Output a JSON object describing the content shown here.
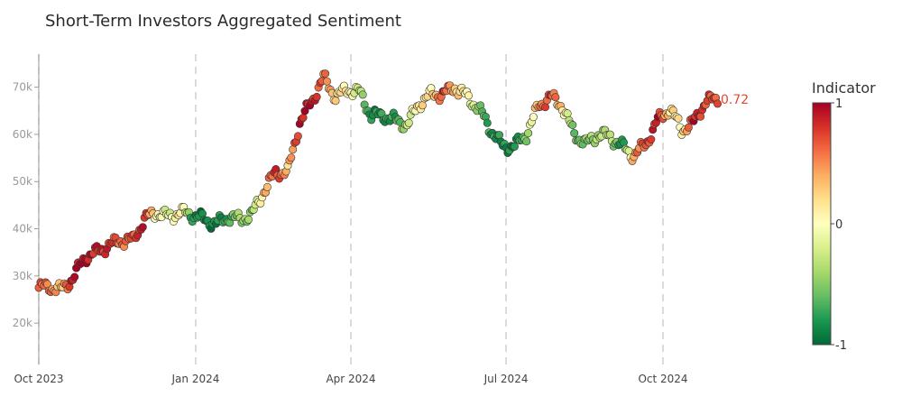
{
  "chart_data": {
    "type": "scatter",
    "title": "Short-Term Investors Aggregated Sentiment",
    "xlabel": "",
    "ylabel": "",
    "x_start": "2023-10-01",
    "x_end": "2024-11-10",
    "x_ticks": [
      {
        "date": "2023-10-01",
        "label": "Oct 2023"
      },
      {
        "date": "2024-01-01",
        "label": "Jan 2024"
      },
      {
        "date": "2024-04-01",
        "label": "Apr 2024"
      },
      {
        "date": "2024-07-01",
        "label": "Jul 2024"
      },
      {
        "date": "2024-10-01",
        "label": "Oct 2024"
      }
    ],
    "ylim": [
      12000,
      77000
    ],
    "y_ticks": [
      {
        "value": 20000,
        "label": "20k"
      },
      {
        "value": 30000,
        "label": "30k"
      },
      {
        "value": 40000,
        "label": "40k"
      },
      {
        "value": 50000,
        "label": "50k"
      },
      {
        "value": 60000,
        "label": "60k"
      },
      {
        "value": 70000,
        "label": "70k"
      }
    ],
    "grid": "vertical dashed at x ticks",
    "colorbar": {
      "title": "Indicator",
      "min": -1,
      "max": 1,
      "tick_labels": [
        "1",
        "0",
        "-1"
      ],
      "colors": [
        "#006837",
        "#1a9850",
        "#66bd63",
        "#a6d96a",
        "#d9ef8b",
        "#ffffbf",
        "#fee08b",
        "#fdae61",
        "#f46d43",
        "#d73027",
        "#a50026"
      ]
    },
    "last_value_label": "0.72",
    "series_x": [
      "2023-10-01",
      "2023-10-07",
      "2023-10-14",
      "2023-10-21",
      "2023-10-28",
      "2023-11-04",
      "2023-11-11",
      "2023-11-18",
      "2023-11-25",
      "2023-12-02",
      "2023-12-09",
      "2023-12-16",
      "2023-12-23",
      "2023-12-30",
      "2024-01-06",
      "2024-01-13",
      "2024-01-20",
      "2024-01-27",
      "2024-02-03",
      "2024-02-10",
      "2024-02-17",
      "2024-02-24",
      "2024-03-02",
      "2024-03-09",
      "2024-03-16",
      "2024-03-23",
      "2024-03-30",
      "2024-04-06",
      "2024-04-13",
      "2024-04-20",
      "2024-04-27",
      "2024-05-04",
      "2024-05-11",
      "2024-05-18",
      "2024-05-25",
      "2024-06-01",
      "2024-06-08",
      "2024-06-15",
      "2024-06-22",
      "2024-06-29",
      "2024-07-06",
      "2024-07-13",
      "2024-07-20",
      "2024-07-27",
      "2024-08-03",
      "2024-08-10",
      "2024-08-17",
      "2024-08-24",
      "2024-08-31",
      "2024-09-07",
      "2024-09-14",
      "2024-09-21",
      "2024-09-28",
      "2024-10-05",
      "2024-10-12",
      "2024-10-19",
      "2024-10-26",
      "2024-11-02"
    ],
    "series_price": [
      27500,
      27800,
      27000,
      29500,
      34000,
      35000,
      36500,
      37500,
      37500,
      42000,
      43500,
      42500,
      43500,
      43000,
      42000,
      41000,
      42500,
      42000,
      43000,
      48000,
      52000,
      52000,
      62500,
      67000,
      72000,
      68000,
      69500,
      69000,
      64000,
      64000,
      63000,
      62000,
      66500,
      68500,
      68500,
      70000,
      68000,
      65500,
      61000,
      57500,
      57500,
      60000,
      66000,
      68000,
      66000,
      60000,
      58000,
      60000,
      59500,
      57500,
      55500,
      58000,
      63000,
      65500,
      61000,
      62500,
      67000,
      67500
    ],
    "series_indicator": [
      0.65,
      0.6,
      0.3,
      0.95,
      0.95,
      0.85,
      0.8,
      0.6,
      0.7,
      0.9,
      0.0,
      -0.2,
      0.2,
      -0.8,
      -0.9,
      -0.85,
      -0.7,
      -0.4,
      -0.5,
      0.3,
      0.85,
      0.3,
      0.9,
      0.9,
      0.6,
      0.2,
      0.1,
      -0.3,
      -0.85,
      -0.8,
      -0.75,
      -0.3,
      0.2,
      0.1,
      0.8,
      0.3,
      0.05,
      -0.5,
      -0.8,
      -0.85,
      -0.9,
      -0.5,
      0.5,
      0.75,
      0.2,
      -0.6,
      -0.5,
      -0.4,
      -0.3,
      -0.9,
      0.5,
      0.7,
      0.9,
      0.2,
      0.1,
      0.9,
      0.75,
      0.72
    ]
  }
}
